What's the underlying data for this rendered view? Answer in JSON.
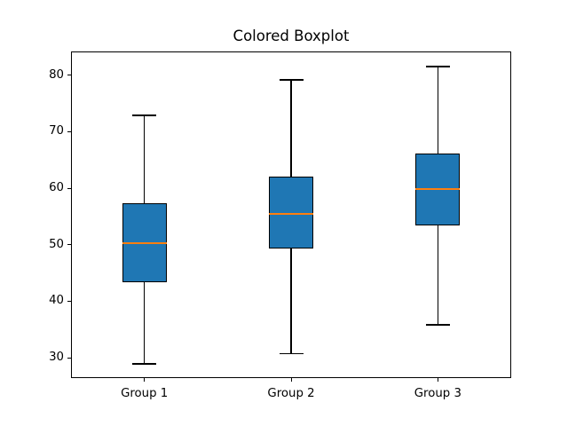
{
  "chart_data": {
    "type": "boxplot",
    "title": "Colored Boxplot",
    "categories": [
      "Group 1",
      "Group 2",
      "Group 3"
    ],
    "series": [
      {
        "name": "Group 1",
        "whisker_low": 28.9,
        "q1": 43.3,
        "median": 50.2,
        "q3": 57.3,
        "whisker_high": 72.9
      },
      {
        "name": "Group 2",
        "whisker_low": 30.7,
        "q1": 49.4,
        "median": 55.5,
        "q3": 62.1,
        "whisker_high": 79.2
      },
      {
        "name": "Group 3",
        "whisker_low": 35.8,
        "q1": 53.4,
        "median": 59.9,
        "q3": 66.2,
        "whisker_high": 81.5
      }
    ],
    "xlabel": "",
    "ylabel": "",
    "yticks": [
      30,
      40,
      50,
      60,
      70,
      80
    ],
    "ylim": [
      26.4,
      84.2
    ],
    "grid": false,
    "legend": null,
    "colors": {
      "box_fill": "#1f77b4",
      "box_edge": "#000000",
      "median": "#ff7f0e",
      "whisker": "#000000",
      "background": "#ffffff",
      "text": "#000000"
    }
  }
}
